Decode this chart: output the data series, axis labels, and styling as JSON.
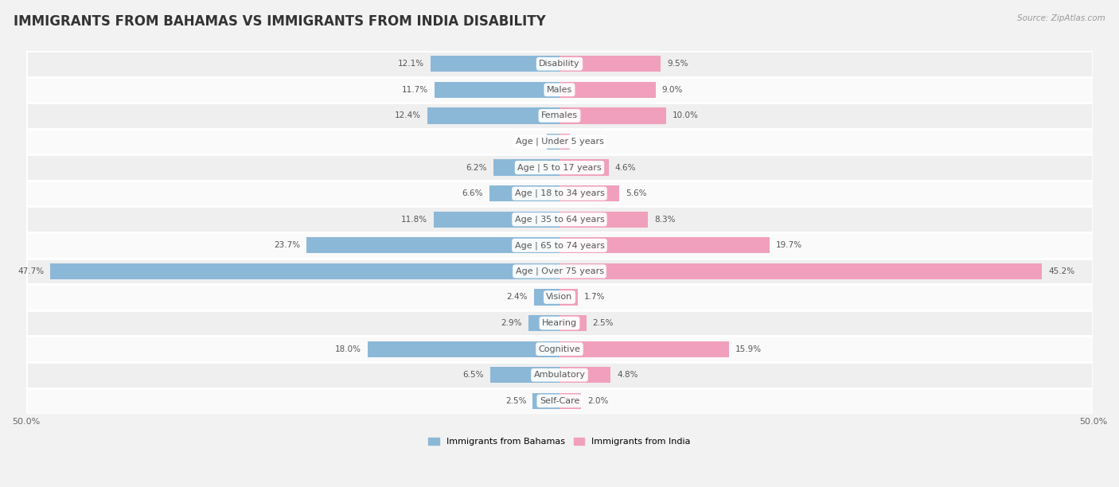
{
  "title": "IMMIGRANTS FROM BAHAMAS VS IMMIGRANTS FROM INDIA DISABILITY",
  "source": "Source: ZipAtlas.com",
  "categories": [
    "Disability",
    "Males",
    "Females",
    "Age | Under 5 years",
    "Age | 5 to 17 years",
    "Age | 18 to 34 years",
    "Age | 35 to 64 years",
    "Age | 65 to 74 years",
    "Age | Over 75 years",
    "Vision",
    "Hearing",
    "Cognitive",
    "Ambulatory",
    "Self-Care"
  ],
  "bahamas_values": [
    12.1,
    11.7,
    12.4,
    1.2,
    6.2,
    6.6,
    11.8,
    23.7,
    47.7,
    2.4,
    2.9,
    18.0,
    6.5,
    2.5
  ],
  "india_values": [
    9.5,
    9.0,
    10.0,
    1.0,
    4.6,
    5.6,
    8.3,
    19.7,
    45.2,
    1.7,
    2.5,
    15.9,
    4.8,
    2.0
  ],
  "bahamas_color": "#8cb8d8",
  "india_color": "#f0a0bc",
  "bahamas_label": "Immigrants from Bahamas",
  "india_label": "Immigrants from India",
  "axis_max": 50.0,
  "background_color": "#f2f2f2",
  "row_bg_even": "#efefef",
  "row_bg_odd": "#fafafa",
  "bar_height": 0.62,
  "title_fontsize": 12,
  "label_fontsize": 8,
  "value_fontsize": 7.5,
  "axis_label_fontsize": 8,
  "cat_fontsize": 8
}
